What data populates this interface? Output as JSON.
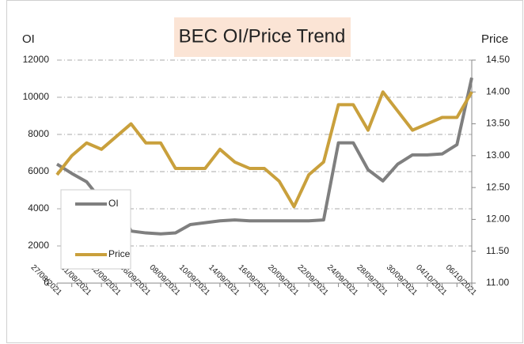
{
  "chart_data": {
    "type": "line",
    "title": "BEC OI/Price Trend",
    "y_label": "OI",
    "y2_label": "Price",
    "categories": [
      "27/08/2021",
      null,
      "31/08/2021",
      null,
      "02/09/2021",
      null,
      "06/09/2021",
      null,
      "08/09/2021",
      null,
      "10/09/2021",
      null,
      "14/09/2021",
      null,
      "16/09/2021",
      null,
      "20/09/2021",
      null,
      "22/09/2021",
      null,
      "24/09/2021",
      null,
      "28/09/2021",
      null,
      "30/09/2021",
      null,
      "04/10/2021",
      null,
      "06/10/2021"
    ],
    "series": [
      {
        "name": "OI",
        "color": "#7f7f7f",
        "axis": "y",
        "values": [
          6400,
          5900,
          5450,
          4450,
          4450,
          2800,
          2700,
          2650,
          2700,
          3150,
          3250,
          3350,
          3400,
          3350,
          3350,
          3350,
          3350,
          3350,
          3400,
          7550,
          7550,
          6100,
          5500,
          6400,
          6900,
          6900,
          6950,
          7450,
          11050
        ]
      },
      {
        "name": "Price",
        "color": "#c9a03c",
        "axis": "y2",
        "values": [
          12.7,
          13.0,
          13.2,
          13.1,
          13.3,
          13.5,
          13.2,
          13.2,
          12.8,
          12.8,
          12.8,
          13.1,
          12.9,
          12.8,
          12.8,
          12.6,
          12.2,
          12.7,
          12.9,
          13.8,
          13.8,
          13.4,
          14.0,
          13.7,
          13.4,
          13.5,
          13.6,
          13.6,
          14.0
        ]
      }
    ],
    "ylim": [
      0,
      12000
    ],
    "yticks": [
      0,
      2000,
      4000,
      6000,
      8000,
      10000,
      12000
    ],
    "y2lim": [
      11,
      14.5
    ],
    "y2ticks": [
      {
        "value": 11,
        "label": "11.00"
      },
      {
        "value": 11.5,
        "label": "11.50"
      },
      {
        "value": 12,
        "label": "12.00"
      },
      {
        "value": 12.5,
        "label": "12.50"
      },
      {
        "value": 13,
        "label": "13.00"
      },
      {
        "value": 13.5,
        "label": "13.50"
      },
      {
        "value": 14,
        "label": "14.00"
      },
      {
        "value": 14.5,
        "label": "14.50"
      }
    ],
    "grid": true,
    "legend": "lower left"
  }
}
